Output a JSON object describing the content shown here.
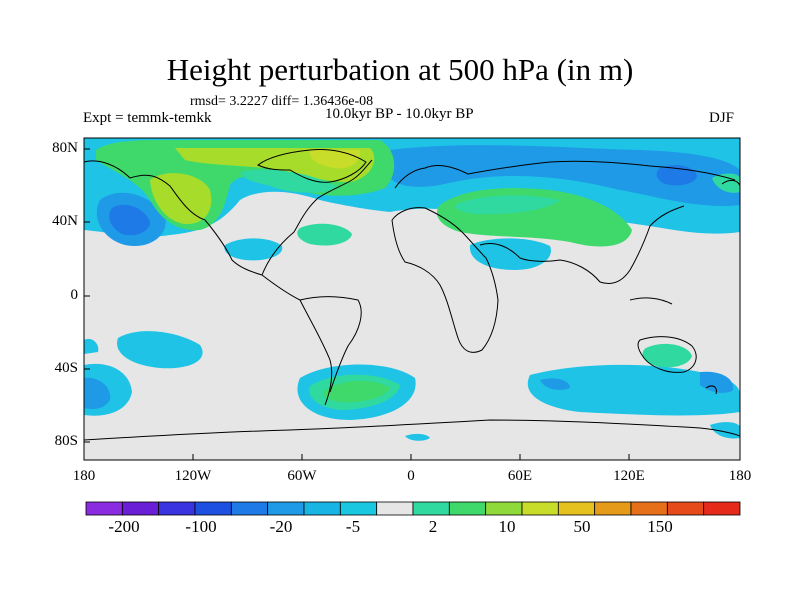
{
  "title": "Height perturbation at 500 hPa (in m)",
  "stats": "rmsd= 3.2227 diff= 1.36436e-08",
  "experiment": "Expt = temmk-temkk",
  "period": "10.0kyr BP - 10.0kyr BP",
  "season": "DJF",
  "axes": {
    "y_ticks": [
      "80N",
      "40N",
      "0",
      "40S",
      "80S"
    ],
    "x_ticks": [
      "180",
      "120W",
      "60W",
      "0",
      "60E",
      "120E",
      "180"
    ]
  },
  "colorbar": {
    "labels": [
      "-200",
      "-100",
      "-20",
      "-5",
      "2",
      "10",
      "50",
      "150"
    ],
    "colors": [
      "#8a2be2",
      "#6a1fd6",
      "#3a33e0",
      "#1d4fe0",
      "#1e7ae6",
      "#1e9ae6",
      "#18b4e3",
      "#19c8e0",
      "#e6e6e6",
      "#2fd9a0",
      "#3fd96b",
      "#8fd93a",
      "#c8dc2a",
      "#e6c21e",
      "#e69a1a",
      "#e6701a",
      "#e64a1a",
      "#e62a1a"
    ]
  },
  "palette": {
    "neutral": "#e6e6e6",
    "light_blue": "#1ec3e6",
    "blue": "#1e9ae6",
    "dark_blue": "#1e7ae6",
    "green_cyan": "#2fd9a0",
    "green": "#3fd96b",
    "yellow_green": "#a8dc2a"
  }
}
